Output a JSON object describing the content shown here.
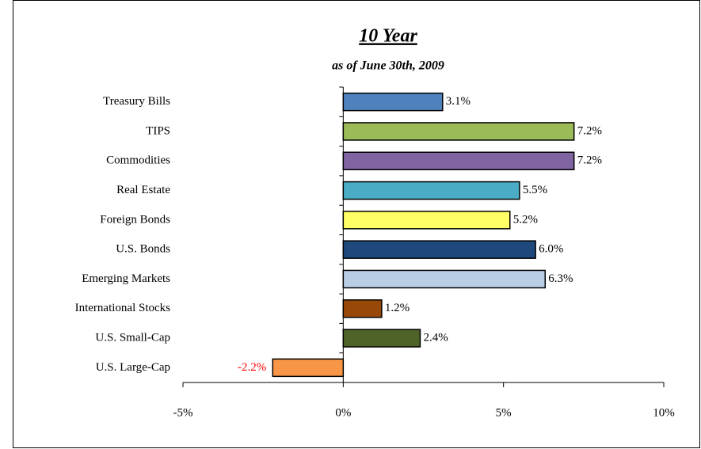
{
  "chart_data": {
    "type": "barh",
    "title": "10 Year",
    "subtitle": "as of June 30th, 2009",
    "categories": [
      "Treasury Bills",
      "TIPS",
      "Commodities",
      "Real Estate",
      "Foreign Bonds",
      "U.S. Bonds",
      "Emerging Markets",
      "International Stocks",
      "U.S. Small-Cap",
      "U.S. Large-Cap"
    ],
    "values": [
      3.1,
      7.2,
      7.2,
      5.5,
      5.2,
      6.0,
      6.3,
      1.2,
      2.4,
      -2.2
    ],
    "value_labels": [
      "3.1%",
      "7.2%",
      "7.2%",
      "5.5%",
      "5.2%",
      "6.0%",
      "6.3%",
      "1.2%",
      "2.4%",
      "-2.2%"
    ],
    "colors": [
      "#4f81bd",
      "#9bbb59",
      "#8064a2",
      "#4bacc6",
      "#ffff66",
      "#1f497d",
      "#b9cde5",
      "#984807",
      "#4f6228",
      "#f79646"
    ],
    "xlim": [
      -5,
      10
    ],
    "xticks": [
      {
        "value": -5,
        "label": "-5%"
      },
      {
        "value": 0,
        "label": "0%"
      },
      {
        "value": 5,
        "label": "5%"
      },
      {
        "value": 10,
        "label": "10%"
      }
    ],
    "grid": false
  }
}
